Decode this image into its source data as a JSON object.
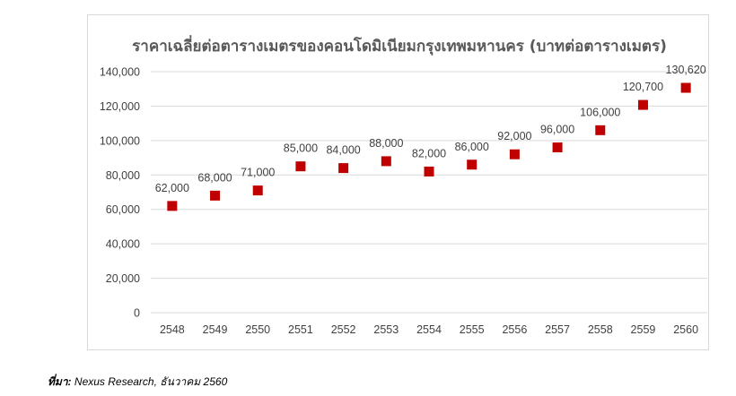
{
  "chart_data": {
    "type": "scatter",
    "title": "ราคาเฉลี่ยต่อตารางเมตรของคอนโดมิเนียมกรุงเทพมหานคร   (บาทต่อตารางเมตร)",
    "xlabel": "",
    "ylabel": "",
    "categories": [
      "2548",
      "2549",
      "2550",
      "2551",
      "2552",
      "2553",
      "2554",
      "2555",
      "2556",
      "2557",
      "2558",
      "2559",
      "2560"
    ],
    "values": [
      62000,
      68000,
      71000,
      85000,
      84000,
      88000,
      82000,
      86000,
      92000,
      96000,
      106000,
      120700,
      130620
    ],
    "data_labels": [
      "62,000",
      "68,000",
      "71,000",
      "85,000",
      "84,000",
      "88,000",
      "82,000",
      "86,000",
      "92,000",
      "96,000",
      "106,000",
      "120,700",
      "130,620"
    ],
    "ylim": [
      0,
      140000
    ],
    "yticks": [
      "0",
      "20,000",
      "40,000",
      "60,000",
      "80,000",
      "100,000",
      "120,000",
      "140,000"
    ],
    "grid": true,
    "legend": "none",
    "marker": "square",
    "colors": {
      "marker": "#c00000",
      "grid": "#d9d9d9",
      "text": "#404040"
    }
  },
  "source": {
    "label": "ที่มา:",
    "text": " Nexus Research, ธันวาคม 2560"
  }
}
